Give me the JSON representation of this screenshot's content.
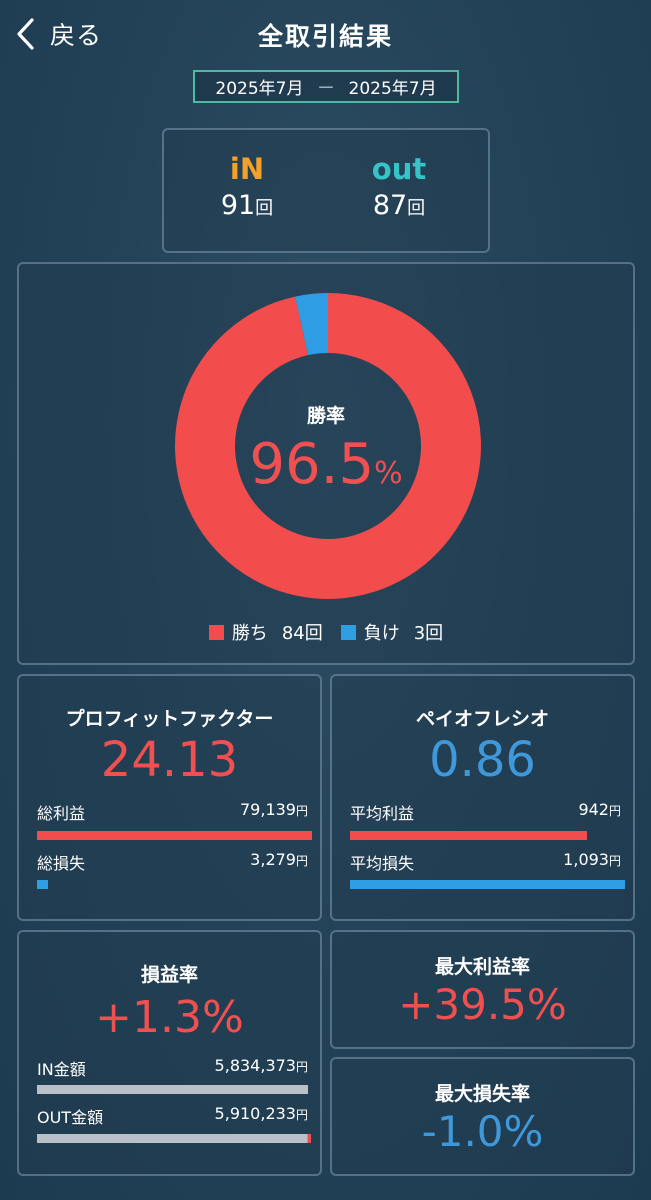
{
  "header": {
    "back_label": "戻る",
    "title": "全取引結果"
  },
  "date_range": {
    "from": "2025年7月",
    "separator": "ー",
    "to": "2025年7月"
  },
  "in_out": {
    "in_label": "iN",
    "in_count": "91",
    "in_unit": "回",
    "out_label": "out",
    "out_count": "87",
    "out_unit": "回"
  },
  "win_rate": {
    "label": "勝率",
    "value": "96.5",
    "unit": "%",
    "legend": [
      {
        "label": "勝ち",
        "count": "84回",
        "color": "#f24c4c"
      },
      {
        "label": "負け",
        "count": "3回",
        "color": "#2f9de3"
      }
    ]
  },
  "chart_data": {
    "type": "pie",
    "title": "勝率",
    "categories": [
      "勝ち",
      "負け"
    ],
    "values": [
      84,
      3
    ],
    "colors": [
      "#f24c4c",
      "#2f9de3"
    ]
  },
  "profit_factor": {
    "title": "プロフィットファクター",
    "value": "24.13",
    "rows": [
      {
        "label": "総利益",
        "amount": "79,139",
        "unit": "円",
        "ratio": 1.0
      },
      {
        "label": "総損失",
        "amount": "3,279",
        "unit": "円",
        "ratio": 0.041
      }
    ]
  },
  "payoff_ratio": {
    "title": "ペイオフレシオ",
    "value": "0.86",
    "rows": [
      {
        "label": "平均利益",
        "amount": "942",
        "unit": "円",
        "ratio": 0.862
      },
      {
        "label": "平均損失",
        "amount": "1,093",
        "unit": "円",
        "ratio": 1.0
      }
    ]
  },
  "pl_rate": {
    "title": "損益率",
    "value": "+1.3%",
    "rows": [
      {
        "label": "IN金額",
        "amount": "5,834,373",
        "unit": "円",
        "ratio": 0.987
      },
      {
        "label": "OUT金額",
        "amount": "5,910,233",
        "unit": "円",
        "ratio": 1.0
      }
    ]
  },
  "max_profit_rate": {
    "title": "最大利益率",
    "value": "+39.5%"
  },
  "max_loss_rate": {
    "title": "最大損失率",
    "value": "-1.0%"
  },
  "colors": {
    "red": "#f05050",
    "blue": "#3f98d9",
    "accent_border": "#4fb8a0"
  }
}
